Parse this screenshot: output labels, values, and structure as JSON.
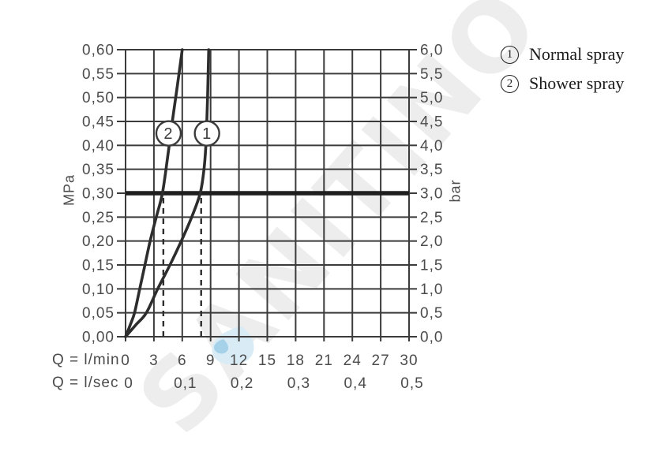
{
  "watermark": {
    "text": "SANITINO",
    "color": "#ededed",
    "drop_icon": "water-drop",
    "drop_color": "#d9ecf6",
    "drop_dot_color": "#a6d2e9"
  },
  "legend": {
    "position": "right-top",
    "items": [
      {
        "symbol": "1",
        "label": "Normal spray"
      },
      {
        "symbol": "2",
        "label": "Shower spray"
      }
    ]
  },
  "chart_data": {
    "type": "line",
    "title": "",
    "grid": true,
    "x_unit": "l/min",
    "y_unit": "MPa",
    "x_axis": {
      "lmin_label": "Q = l/min",
      "lsec_label": "Q = l/sec",
      "range_lmin": [
        0,
        30
      ],
      "lmin_ticks": [
        "0",
        "3",
        "6",
        "9",
        "12",
        "15",
        "18",
        "21",
        "24",
        "27",
        "30"
      ],
      "lsec_ticks": [
        {
          "label": "0",
          "lmin": 0
        },
        {
          "label": "0,1",
          "lmin": 6
        },
        {
          "label": "0,2",
          "lmin": 12
        },
        {
          "label": "0,3",
          "lmin": 18
        },
        {
          "label": "0,4",
          "lmin": 24
        },
        {
          "label": "0,5",
          "lmin": 30
        }
      ]
    },
    "y_axis_left": {
      "label": "MPa",
      "range": [
        0,
        0.6
      ],
      "ticks": [
        "0,60",
        "0,55",
        "0,50",
        "0,45",
        "0,40",
        "0,35",
        "0,30",
        "0,25",
        "0,20",
        "0,15",
        "0,10",
        "0,05",
        "0,00"
      ]
    },
    "y_axis_right": {
      "label": "bar",
      "range": [
        0,
        6
      ],
      "ticks": [
        "6,0",
        "5,5",
        "5,0",
        "4,5",
        "4,0",
        "3,5",
        "3,0",
        "2,5",
        "2,0",
        "1,5",
        "1,0",
        "0,5",
        "0,0"
      ]
    },
    "reference_line": {
      "mpa": 0.3,
      "bar": 3.0
    },
    "dashed_lines_lmin": [
      4,
      8
    ],
    "series": [
      {
        "id": "1",
        "name": "Normal spray",
        "flow_at_3bar_lmin": 8,
        "marker": {
          "lmin": 8.62,
          "mpa": 0.425
        },
        "points": [
          [
            0,
            0
          ],
          [
            1.1,
            0.025
          ],
          [
            2.2,
            0.05
          ],
          [
            3.4,
            0.1
          ],
          [
            4.7,
            0.15
          ],
          [
            5.9,
            0.2
          ],
          [
            7.0,
            0.25
          ],
          [
            7.9,
            0.3
          ],
          [
            8.3,
            0.35
          ],
          [
            8.5,
            0.4
          ],
          [
            8.6,
            0.45
          ],
          [
            8.68,
            0.5
          ],
          [
            8.74,
            0.55
          ],
          [
            8.8,
            0.6
          ]
        ]
      },
      {
        "id": "2",
        "name": "Shower spray",
        "flow_at_3bar_lmin": 4,
        "marker": {
          "lmin": 4.55,
          "mpa": 0.425
        },
        "points": [
          [
            0,
            0
          ],
          [
            0.5,
            0.025
          ],
          [
            0.95,
            0.05
          ],
          [
            1.5,
            0.1
          ],
          [
            2.05,
            0.15
          ],
          [
            2.6,
            0.2
          ],
          [
            3.25,
            0.25
          ],
          [
            3.9,
            0.3
          ],
          [
            4.45,
            0.375
          ],
          [
            4.95,
            0.45
          ],
          [
            5.45,
            0.52
          ],
          [
            6.0,
            0.6
          ]
        ]
      }
    ],
    "colors": {
      "grid": "#3b3b3b",
      "curve": "#2d2d2d",
      "reference": "#1f1f1f",
      "tick_text": "#4b4b4b"
    }
  }
}
